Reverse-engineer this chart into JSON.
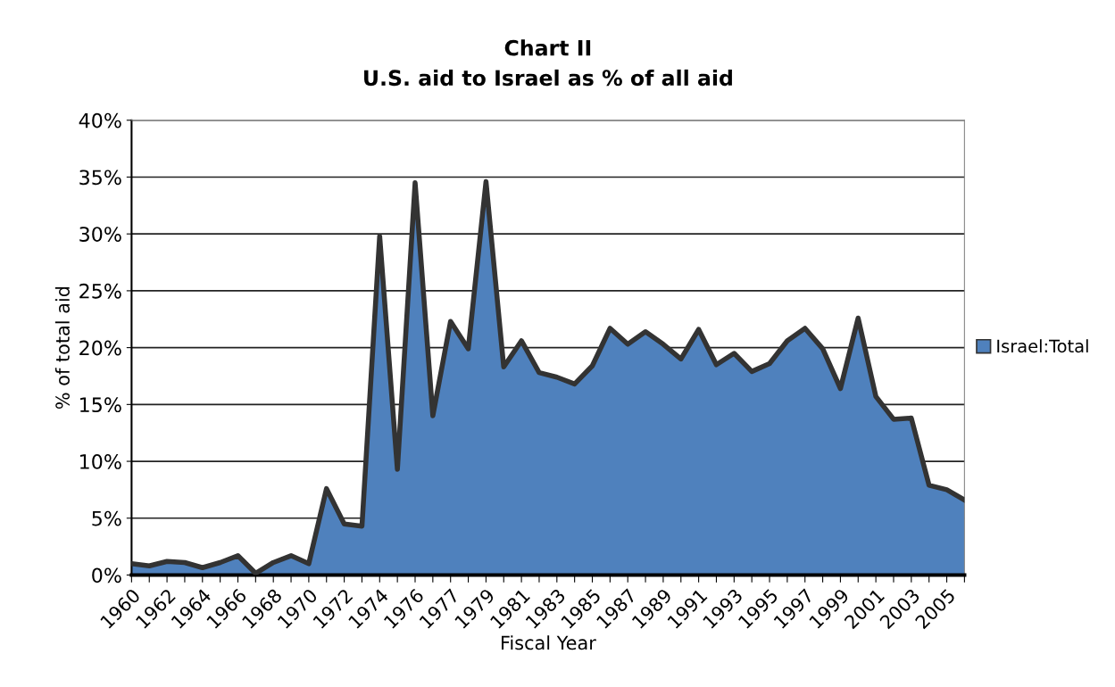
{
  "chart_data": {
    "type": "area",
    "title": "Chart II\nU.S. aid to Israel as % of all aid",
    "xlabel": "Fiscal Year",
    "ylabel": "% of total aid",
    "categories": [
      "1960",
      null,
      "1962",
      null,
      "1964",
      null,
      "1966",
      null,
      "1968",
      null,
      "1970",
      null,
      "1972",
      null,
      "1974",
      null,
      "1976",
      null,
      "1977",
      null,
      "1979",
      null,
      "1981",
      null,
      "1983",
      null,
      "1985",
      null,
      "1987",
      null,
      "1989",
      null,
      "1991",
      null,
      "1993",
      null,
      "1995",
      null,
      "1997",
      null,
      "1999",
      null,
      "2001",
      null,
      "2003",
      null,
      "2005",
      null
    ],
    "series": [
      {
        "name": "Israel:Total",
        "color": "#4f81bd",
        "values": [
          1.0,
          0.8,
          1.2,
          1.1,
          0.65,
          1.1,
          1.7,
          0.15,
          1.1,
          1.7,
          1.0,
          7.6,
          4.5,
          4.3,
          29.8,
          9.3,
          34.5,
          14.0,
          22.3,
          19.9,
          34.6,
          18.3,
          20.6,
          17.8,
          17.4,
          16.8,
          18.4,
          21.7,
          20.3,
          21.4,
          20.3,
          19.0,
          21.6,
          18.5,
          19.5,
          17.9,
          18.6,
          20.6,
          21.7,
          19.9,
          16.4,
          22.6,
          15.7,
          13.7,
          13.8,
          7.9,
          7.5,
          6.6
        ]
      }
    ],
    "ylim": [
      0,
      40
    ],
    "yticks": [
      {
        "value": 0,
        "label": "0%"
      },
      {
        "value": 5,
        "label": "5%"
      },
      {
        "value": 10,
        "label": "10%"
      },
      {
        "value": 15,
        "label": "15%"
      },
      {
        "value": 20,
        "label": "20%"
      },
      {
        "value": 25,
        "label": "25%"
      },
      {
        "value": 30,
        "label": "30%"
      },
      {
        "value": 35,
        "label": "35%"
      },
      {
        "value": 40,
        "label": "40%"
      }
    ],
    "grid": "y",
    "legend": "right"
  }
}
